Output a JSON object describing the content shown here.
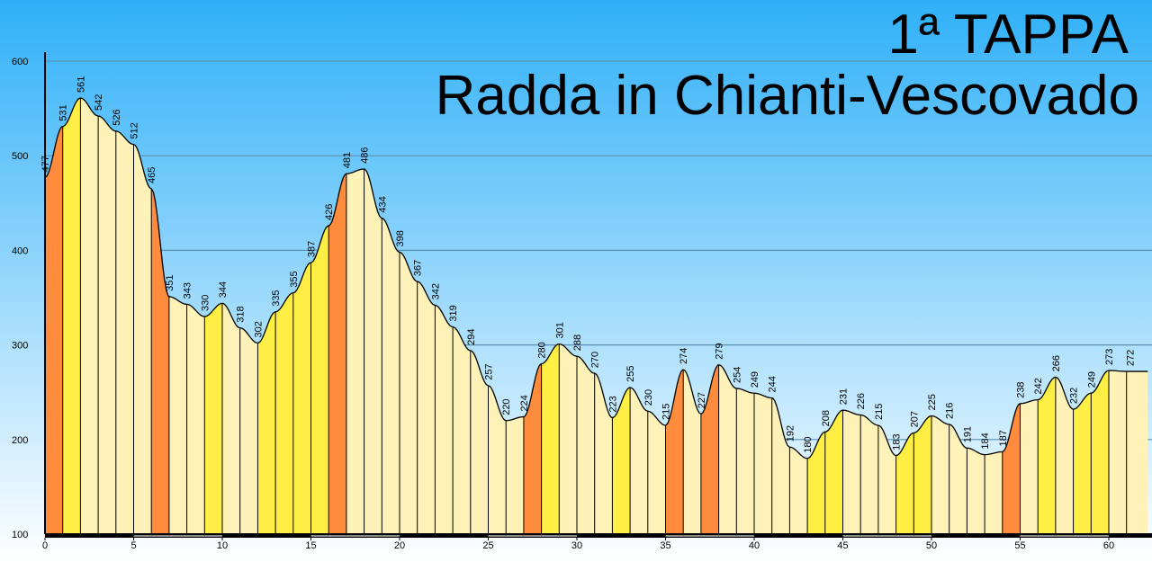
{
  "chart_data": {
    "type": "area",
    "title": "1ª TAPPA",
    "subtitle": "Radda in Chianti-Vescovado",
    "xlabel": "",
    "ylabel": "",
    "xlim": [
      0,
      62.2
    ],
    "ylim": [
      100,
      600
    ],
    "x_ticks": [
      0,
      5,
      10,
      15,
      20,
      25,
      30,
      35,
      40,
      45,
      50,
      55,
      60
    ],
    "y_ticks": [
      100,
      200,
      300,
      400,
      500,
      600
    ],
    "grid": true,
    "elevations": [
      {
        "x": 0,
        "y": 477,
        "label": "477"
      },
      {
        "x": 1,
        "y": 531,
        "label": "531"
      },
      {
        "x": 2,
        "y": 561,
        "label": "561"
      },
      {
        "x": 3,
        "y": 542,
        "label": "542"
      },
      {
        "x": 4,
        "y": 526,
        "label": "526"
      },
      {
        "x": 5,
        "y": 512,
        "label": "512"
      },
      {
        "x": 6,
        "y": 465,
        "label": "465"
      },
      {
        "x": 7,
        "y": 351,
        "label": "351"
      },
      {
        "x": 8,
        "y": 343,
        "label": "343"
      },
      {
        "x": 9,
        "y": 330,
        "label": "330"
      },
      {
        "x": 10,
        "y": 344,
        "label": "344"
      },
      {
        "x": 11,
        "y": 318,
        "label": "318"
      },
      {
        "x": 12,
        "y": 302,
        "label": "302"
      },
      {
        "x": 13,
        "y": 335,
        "label": "335"
      },
      {
        "x": 14,
        "y": 355,
        "label": "355"
      },
      {
        "x": 15,
        "y": 387,
        "label": "387"
      },
      {
        "x": 16,
        "y": 426,
        "label": "426"
      },
      {
        "x": 17,
        "y": 481,
        "label": "481"
      },
      {
        "x": 18,
        "y": 486,
        "label": "486"
      },
      {
        "x": 19,
        "y": 434,
        "label": "434"
      },
      {
        "x": 20,
        "y": 398,
        "label": "398"
      },
      {
        "x": 21,
        "y": 367,
        "label": "367"
      },
      {
        "x": 22,
        "y": 342,
        "label": "342"
      },
      {
        "x": 23,
        "y": 319,
        "label": "319"
      },
      {
        "x": 24,
        "y": 294,
        "label": "294"
      },
      {
        "x": 25,
        "y": 257,
        "label": "257"
      },
      {
        "x": 26,
        "y": 220,
        "label": "220"
      },
      {
        "x": 27,
        "y": 224,
        "label": "224"
      },
      {
        "x": 28,
        "y": 280,
        "label": "280"
      },
      {
        "x": 29,
        "y": 301,
        "label": "301"
      },
      {
        "x": 30,
        "y": 288,
        "label": "288"
      },
      {
        "x": 31,
        "y": 270,
        "label": "270"
      },
      {
        "x": 32,
        "y": 223,
        "label": "223"
      },
      {
        "x": 33,
        "y": 255,
        "label": "255"
      },
      {
        "x": 34,
        "y": 230,
        "label": "230"
      },
      {
        "x": 35,
        "y": 215,
        "label": "215"
      },
      {
        "x": 36,
        "y": 274,
        "label": "274"
      },
      {
        "x": 37,
        "y": 227,
        "label": "227"
      },
      {
        "x": 38,
        "y": 279,
        "label": "279"
      },
      {
        "x": 39,
        "y": 254,
        "label": "254"
      },
      {
        "x": 40,
        "y": 249,
        "label": "249"
      },
      {
        "x": 41,
        "y": 244,
        "label": "244"
      },
      {
        "x": 42,
        "y": 192,
        "label": "192"
      },
      {
        "x": 43,
        "y": 180,
        "label": "180"
      },
      {
        "x": 44,
        "y": 208,
        "label": "208"
      },
      {
        "x": 45,
        "y": 231,
        "label": "231"
      },
      {
        "x": 46,
        "y": 226,
        "label": "226"
      },
      {
        "x": 47,
        "y": 215,
        "label": "215"
      },
      {
        "x": 48,
        "y": 183,
        "label": "183"
      },
      {
        "x": 49,
        "y": 207,
        "label": "207"
      },
      {
        "x": 50,
        "y": 225,
        "label": "225"
      },
      {
        "x": 51,
        "y": 216,
        "label": "216"
      },
      {
        "x": 52,
        "y": 191,
        "label": "191"
      },
      {
        "x": 53,
        "y": 184,
        "label": "184"
      },
      {
        "x": 54,
        "y": 187,
        "label": "187"
      },
      {
        "x": 55,
        "y": 238,
        "label": "238"
      },
      {
        "x": 56,
        "y": 242,
        "label": "242"
      },
      {
        "x": 57,
        "y": 266,
        "label": "266"
      },
      {
        "x": 58,
        "y": 232,
        "label": "232"
      },
      {
        "x": 59,
        "y": 249,
        "label": "249"
      },
      {
        "x": 60,
        "y": 273,
        "label": "273"
      },
      {
        "x": 61,
        "y": 272,
        "label": "272"
      }
    ],
    "segment_colors": {
      "flat_or_descent": "#FFF2B8",
      "moderate_climb": "#FFEE44",
      "steep": "#FF8C3C"
    },
    "colors": {
      "sky_top": "#2FB0F8",
      "sky_bottom": "#FFFFFF",
      "grid": "#5A8FB4",
      "outline": "#000000"
    }
  }
}
